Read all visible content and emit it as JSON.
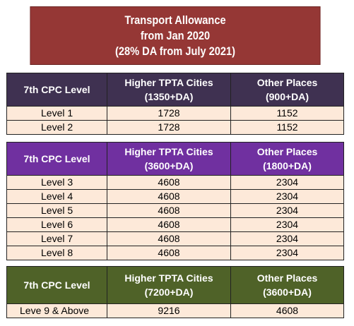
{
  "title": {
    "line1": "Transport Allowance",
    "line2": "from Jan 2020",
    "line3": "(28% DA from July 2021)"
  },
  "tables": [
    {
      "header": {
        "col1": "7th CPC Level",
        "col2_line1": "Higher TPTA Cities",
        "col2_line2": "(1350+DA)",
        "col3_line1": "Other Places",
        "col3_line2": "(900+DA)"
      },
      "rows": [
        {
          "level": "Level 1",
          "higher": "1728",
          "other": "1152"
        },
        {
          "level": "Level 2",
          "higher": "1728",
          "other": "1152"
        }
      ],
      "header_color": "#3f3151"
    },
    {
      "header": {
        "col1": "7th CPC Level",
        "col2_line1": "Higher TPTA Cities",
        "col2_line2": "(3600+DA)",
        "col3_line1": "Other Places",
        "col3_line2": "(1800+DA)"
      },
      "rows": [
        {
          "level": "Level 3",
          "higher": "4608",
          "other": "2304"
        },
        {
          "level": "Level 4",
          "higher": "4608",
          "other": "2304"
        },
        {
          "level": "Level 5",
          "higher": "4608",
          "other": "2304"
        },
        {
          "level": "Level 6",
          "higher": "4608",
          "other": "2304"
        },
        {
          "level": "Level 7",
          "higher": "4608",
          "other": "2304"
        },
        {
          "level": "Level 8",
          "higher": "4608",
          "other": "2304"
        }
      ],
      "header_color": "#7030a0"
    },
    {
      "header": {
        "col1": "7th CPC Level",
        "col2_line1": "Higher TPTA Cities",
        "col2_line2": "(7200+DA)",
        "col3_line1": "Other Places",
        "col3_line2": "(3600+DA)"
      },
      "rows": [
        {
          "level": "Leve 9 & Above",
          "higher": "9216",
          "other": "4608"
        }
      ],
      "header_color": "#4f6228"
    }
  ],
  "colors": {
    "title_bg": "#953735",
    "cell_bg": "#fde9d9"
  }
}
